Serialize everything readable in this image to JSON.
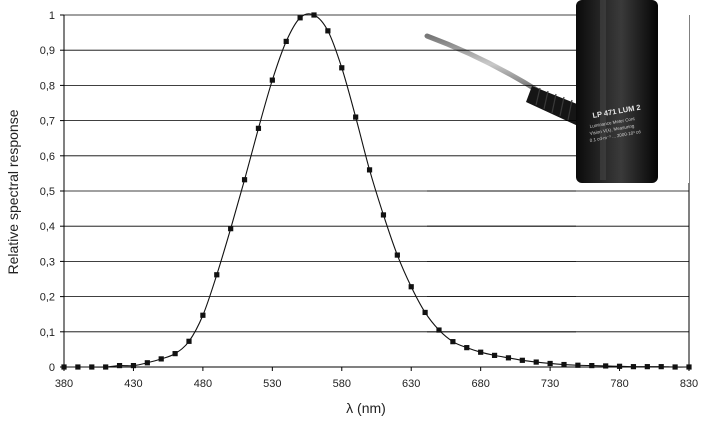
{
  "chart_data": {
    "type": "line",
    "title": "",
    "xlabel": "λ (nm)",
    "ylabel": "Relative spectral response",
    "xlim": [
      380,
      830
    ],
    "ylim": [
      0,
      1
    ],
    "x_ticks": [
      "380",
      "430",
      "480",
      "530",
      "580",
      "630",
      "680",
      "730",
      "780",
      "830"
    ],
    "y_ticks": [
      "0",
      "0,1",
      "0,2",
      "0,3",
      "0,4",
      "0,5",
      "0,6",
      "0,7",
      "0,8",
      "0,9",
      "1"
    ],
    "grid": "horizontal",
    "series": [
      {
        "x": [
          380,
          390,
          400,
          410,
          420,
          430,
          440,
          450,
          460,
          470,
          480,
          490,
          500,
          510,
          520,
          530,
          540,
          550,
          560,
          570,
          580,
          590,
          600,
          610,
          620,
          630,
          640,
          650,
          660,
          670,
          680,
          690,
          700,
          710,
          720,
          730,
          740,
          750,
          760,
          770,
          780,
          790,
          800,
          810,
          820,
          830
        ],
        "values": [
          0.0,
          0.0,
          0.0,
          0.0,
          0.004,
          0.004,
          0.012,
          0.023,
          0.038,
          0.073,
          0.147,
          0.262,
          0.393,
          0.532,
          0.678,
          0.815,
          0.925,
          0.992,
          1.0,
          0.955,
          0.85,
          0.71,
          0.56,
          0.432,
          0.318,
          0.228,
          0.155,
          0.105,
          0.072,
          0.055,
          0.042,
          0.033,
          0.026,
          0.019,
          0.014,
          0.01,
          0.007,
          0.005,
          0.004,
          0.003,
          0.002,
          0.001,
          0.001,
          0.001,
          0.0,
          0.0
        ]
      }
    ],
    "inset_photo": {
      "probe_model": "LP 471 LUM 2",
      "probe_text_lines": [
        "Luminance Meter Cont",
        "Vision V(λ), Measuring",
        "0.1 cd·m⁻² ... 2000·10³ cd"
      ]
    }
  }
}
